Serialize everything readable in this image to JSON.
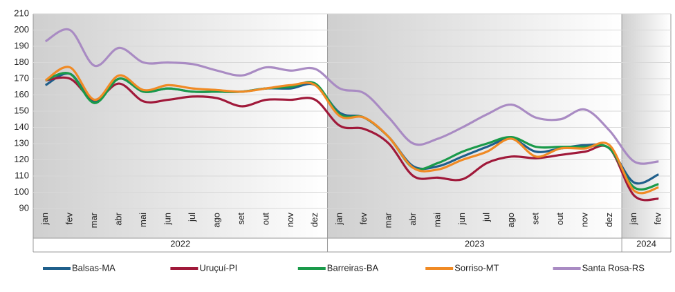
{
  "chart_data": {
    "type": "line",
    "categories": [
      "jan",
      "fev",
      "mar",
      "abr",
      "mai",
      "jun",
      "jul",
      "ago",
      "set",
      "out",
      "nov",
      "dez",
      "jan",
      "fev",
      "mar",
      "abr",
      "mai",
      "jun",
      "jul",
      "ago",
      "set",
      "out",
      "nov",
      "dez",
      "jan",
      "fev"
    ],
    "years": [
      "2022",
      "2023",
      "2024"
    ],
    "series": [
      {
        "name": "Balsas-MA",
        "color": "#1f5f8b",
        "values": [
          166,
          173,
          156,
          170,
          162,
          164,
          162,
          162,
          162,
          164,
          164,
          166,
          149,
          146,
          134,
          116,
          116,
          122,
          128,
          133,
          125,
          127,
          129,
          127,
          106,
          111
        ]
      },
      {
        "name": "Uruçuí-PI",
        "color": "#a0193a",
        "values": [
          169,
          170,
          157,
          167,
          156,
          157,
          159,
          158,
          153,
          157,
          157,
          157,
          141,
          139,
          130,
          110,
          109,
          108,
          118,
          122,
          121,
          123,
          125,
          127,
          98,
          96
        ]
      },
      {
        "name": "Barreiras-BA",
        "color": "#1a9a4a",
        "values": [
          169,
          173,
          155,
          170,
          162,
          164,
          162,
          162,
          162,
          164,
          165,
          167,
          148,
          146,
          134,
          115,
          118,
          125,
          130,
          134,
          128,
          128,
          128,
          127,
          103,
          105
        ]
      },
      {
        "name": "Sorriso-MT",
        "color": "#f08a24",
        "values": [
          169,
          177,
          157,
          172,
          163,
          166,
          164,
          163,
          162,
          164,
          166,
          166,
          147,
          146,
          134,
          115,
          114,
          120,
          125,
          133,
          122,
          127,
          127,
          129,
          101,
          103
        ]
      },
      {
        "name": "Santa Rosa-RS",
        "color": "#a98bc3",
        "values": [
          193,
          200,
          178,
          189,
          180,
          180,
          179,
          175,
          172,
          177,
          175,
          176,
          164,
          161,
          146,
          130,
          133,
          140,
          148,
          154,
          146,
          145,
          151,
          138,
          119,
          119
        ]
      }
    ],
    "ylim": [
      90,
      210
    ],
    "yticks": [
      90,
      100,
      110,
      120,
      130,
      140,
      150,
      160,
      170,
      180,
      190,
      200,
      210
    ],
    "grid": true
  }
}
